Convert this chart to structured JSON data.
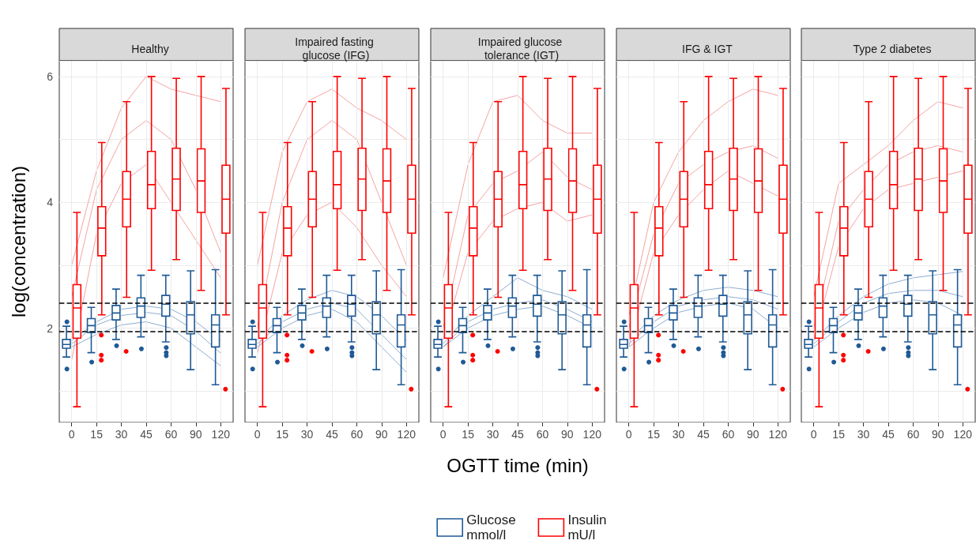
{
  "chart_data": [
    {
      "type": "box",
      "title": "Healthy",
      "ylabel": "log(concentration)",
      "categories": [
        "0",
        "15",
        "30",
        "45",
        "60",
        "90",
        "120"
      ],
      "ylim": [
        0.5,
        6.25
      ],
      "yticks": [
        2,
        4,
        6
      ],
      "grid": true,
      "ref_lines": [
        {
          "axis": "y",
          "value": 2.4,
          "color": "#000000",
          "line_style": "dashed"
        },
        {
          "axis": "y",
          "value": 1.95,
          "color": "#000000",
          "line_style": "dashed"
        }
      ],
      "series": [
        {
          "type": "line",
          "color": "#f5a3a3",
          "values": [
            2.5,
            4.2,
            5.0,
            5.3,
            5.0,
            4.2,
            3.2
          ]
        },
        {
          "type": "line",
          "color": "#f5a3a3",
          "values": [
            1.5,
            3.5,
            4.3,
            4.6,
            4.0,
            3.4,
            2.8
          ]
        },
        {
          "type": "line",
          "color": "#f5a3a3",
          "values": [
            3.0,
            4.5,
            5.5,
            6.0,
            5.8,
            5.7,
            5.6
          ]
        },
        {
          "type": "line",
          "color": "#8fadd0",
          "values": [
            1.75,
            2.05,
            2.2,
            2.25,
            2.2,
            1.95,
            1.6
          ]
        },
        {
          "type": "line",
          "color": "#8fadd0",
          "values": [
            1.7,
            1.9,
            2.05,
            2.1,
            2.0,
            1.7,
            1.4
          ]
        },
        {
          "type": "line",
          "color": "#8fadd0",
          "values": [
            1.8,
            2.1,
            2.3,
            2.35,
            2.3,
            2.1,
            1.8
          ]
        },
        {
          "type": "box",
          "color": "#1f5a96",
          "boxes": [
            {
              "low": 1.54,
              "q1": 1.68,
              "median": 1.74,
              "q3": 1.82,
              "high": 2.03,
              "outliers": [
                2.1,
                1.35
              ]
            },
            {
              "low": 1.61,
              "q1": 1.93,
              "median": 2.04,
              "q3": 2.15,
              "high": 2.33,
              "outliers": [
                1.46
              ]
            },
            {
              "low": 1.82,
              "q1": 2.13,
              "median": 2.24,
              "q3": 2.36,
              "high": 2.62,
              "outliers": [
                1.72
              ]
            },
            {
              "low": 1.86,
              "q1": 2.17,
              "median": 2.35,
              "q3": 2.48,
              "high": 2.84,
              "outliers": [
                1.67
              ]
            },
            {
              "low": 1.78,
              "q1": 2.19,
              "median": 2.38,
              "q3": 2.52,
              "high": 2.84,
              "outliers": [
                1.69,
                1.61,
                1.56
              ]
            },
            {
              "low": 1.34,
              "q1": 1.91,
              "median": 2.21,
              "q3": 2.42,
              "high": 2.91
            },
            {
              "low": 1.1,
              "q1": 1.7,
              "median": 2.05,
              "q3": 2.21,
              "high": 2.93
            }
          ]
        },
        {
          "type": "box",
          "color": "#ff0000",
          "boxes": [
            {
              "low": 0.75,
              "q1": 1.84,
              "median": 2.32,
              "q3": 2.69,
              "high": 3.84
            },
            {
              "low": 2.21,
              "q1": 3.15,
              "median": 3.59,
              "q3": 3.93,
              "high": 4.95,
              "outliers": [
                1.89,
                1.57,
                1.49
              ]
            },
            {
              "low": 2.49,
              "q1": 3.61,
              "median": 4.05,
              "q3": 4.49,
              "high": 5.6,
              "outliers": [
                1.63
              ]
            },
            {
              "low": 2.92,
              "q1": 3.9,
              "median": 4.28,
              "q3": 4.81,
              "high": 6.0
            },
            {
              "low": 3.09,
              "q1": 3.87,
              "median": 4.37,
              "q3": 4.86,
              "high": 5.97
            },
            {
              "low": 2.6,
              "q1": 3.84,
              "median": 4.34,
              "q3": 4.85,
              "high": 6.0
            },
            {
              "low": 2.21,
              "q1": 3.51,
              "median": 4.05,
              "q3": 4.59,
              "high": 5.81,
              "outliers": [
                1.03
              ]
            }
          ]
        }
      ]
    },
    {
      "type": "box",
      "title": "Impaired fasting glucose (IFG)",
      "categories": [
        "0",
        "15",
        "30",
        "45",
        "60",
        "90",
        "120"
      ],
      "ylim": [
        0.5,
        6.25
      ],
      "yticks": [
        2,
        4,
        6
      ],
      "grid": true,
      "tick_labels": "x",
      "ref_lines": [
        {
          "axis": "y",
          "value": 2.4,
          "color": "#000000",
          "line_style": "dashed"
        },
        {
          "axis": "y",
          "value": 1.95,
          "color": "#000000",
          "line_style": "dashed"
        }
      ],
      "series": [
        {
          "type": "line",
          "color": "#f5a3a3",
          "values": [
            2.0,
            4.0,
            5.0,
            5.3,
            5.0,
            4.0,
            3.0
          ]
        },
        {
          "type": "line",
          "color": "#f5a3a3",
          "values": [
            3.0,
            4.8,
            5.6,
            5.8,
            5.5,
            5.3,
            5.0
          ]
        },
        {
          "type": "line",
          "color": "#f5a3a3",
          "values": [
            1.6,
            3.2,
            3.8,
            4.0,
            3.6,
            3.0,
            2.5
          ]
        },
        {
          "type": "line",
          "color": "#8fadd0",
          "values": [
            1.8,
            2.2,
            2.45,
            2.6,
            2.5,
            2.2,
            1.8
          ]
        },
        {
          "type": "line",
          "color": "#8fadd0",
          "values": [
            1.75,
            2.1,
            2.3,
            2.4,
            2.3,
            1.9,
            1.5
          ]
        },
        {
          "type": "line",
          "color": "#8fadd0",
          "values": [
            1.7,
            2.0,
            2.2,
            2.3,
            2.1,
            1.7,
            1.3
          ]
        },
        {
          "type": "box",
          "color": "#1f5a96",
          "boxes": [
            {
              "low": 1.54,
              "q1": 1.68,
              "median": 1.74,
              "q3": 1.82,
              "high": 2.03,
              "outliers": [
                2.1,
                1.35
              ]
            },
            {
              "low": 1.61,
              "q1": 1.93,
              "median": 2.04,
              "q3": 2.15,
              "high": 2.33,
              "outliers": [
                1.46
              ]
            },
            {
              "low": 1.82,
              "q1": 2.13,
              "median": 2.24,
              "q3": 2.36,
              "high": 2.62,
              "outliers": [
                1.72
              ]
            },
            {
              "low": 1.86,
              "q1": 2.17,
              "median": 2.35,
              "q3": 2.48,
              "high": 2.84,
              "outliers": [
                1.67
              ]
            },
            {
              "low": 1.78,
              "q1": 2.19,
              "median": 2.38,
              "q3": 2.52,
              "high": 2.84,
              "outliers": [
                1.69,
                1.61,
                1.56
              ]
            },
            {
              "low": 1.34,
              "q1": 1.91,
              "median": 2.21,
              "q3": 2.42,
              "high": 2.91
            },
            {
              "low": 1.1,
              "q1": 1.7,
              "median": 2.05,
              "q3": 2.21,
              "high": 2.93
            }
          ]
        },
        {
          "type": "box",
          "color": "#ff0000",
          "boxes": [
            {
              "low": 0.75,
              "q1": 1.84,
              "median": 2.32,
              "q3": 2.69,
              "high": 3.84
            },
            {
              "low": 2.21,
              "q1": 3.15,
              "median": 3.59,
              "q3": 3.93,
              "high": 4.95,
              "outliers": [
                1.89,
                1.57,
                1.49
              ]
            },
            {
              "low": 2.49,
              "q1": 3.61,
              "median": 4.05,
              "q3": 4.49,
              "high": 5.6,
              "outliers": [
                1.63
              ]
            },
            {
              "low": 2.92,
              "q1": 3.9,
              "median": 4.28,
              "q3": 4.81,
              "high": 6.0
            },
            {
              "low": 3.09,
              "q1": 3.87,
              "median": 4.37,
              "q3": 4.86,
              "high": 5.97
            },
            {
              "low": 2.6,
              "q1": 3.84,
              "median": 4.34,
              "q3": 4.85,
              "high": 6.0
            },
            {
              "low": 2.21,
              "q1": 3.51,
              "median": 4.05,
              "q3": 4.59,
              "high": 5.81,
              "outliers": [
                1.03
              ]
            }
          ]
        }
      ]
    },
    {
      "type": "box",
      "title": "Impaired glucose tolerance (IGT)",
      "xlabel": "OGTT time (min)",
      "legend": "bottom",
      "categories": [
        "0",
        "15",
        "30",
        "45",
        "60",
        "90",
        "120"
      ],
      "ylim": [
        0.5,
        6.25
      ],
      "yticks": [
        2,
        4,
        6
      ],
      "grid": true,
      "tick_labels": "x",
      "ref_lines": [
        {
          "axis": "y",
          "value": 2.4,
          "color": "#000000",
          "line_style": "dashed"
        },
        {
          "axis": "y",
          "value": 1.95,
          "color": "#000000",
          "line_style": "dashed"
        }
      ],
      "series": [
        {
          "type": "line",
          "color": "#f5a3a3",
          "values": [
            2.8,
            4.6,
            5.6,
            5.7,
            5.3,
            5.1,
            5.1
          ]
        },
        {
          "type": "line",
          "color": "#f5a3a3",
          "values": [
            2.0,
            3.8,
            4.3,
            4.5,
            4.8,
            4.4,
            4.2
          ]
        },
        {
          "type": "line",
          "color": "#f5a3a3",
          "values": [
            1.8,
            3.2,
            3.7,
            3.9,
            4.0,
            3.7,
            3.8
          ]
        },
        {
          "type": "line",
          "color": "#8fadd0",
          "values": [
            1.75,
            2.2,
            2.5,
            2.8,
            2.6,
            2.5,
            2.3
          ]
        },
        {
          "type": "line",
          "color": "#8fadd0",
          "values": [
            1.7,
            2.1,
            2.3,
            2.4,
            2.45,
            2.3,
            2.1
          ]
        },
        {
          "type": "line",
          "color": "#8fadd0",
          "values": [
            1.7,
            2.0,
            2.2,
            2.3,
            2.35,
            2.2,
            2.0
          ]
        },
        {
          "type": "box",
          "name": "Glucose\nmmol/l",
          "color": "#1f5a96",
          "boxes": [
            {
              "low": 1.54,
              "q1": 1.68,
              "median": 1.74,
              "q3": 1.82,
              "high": 2.03,
              "outliers": [
                2.1,
                1.35
              ]
            },
            {
              "low": 1.61,
              "q1": 1.93,
              "median": 2.04,
              "q3": 2.15,
              "high": 2.33,
              "outliers": [
                1.46
              ]
            },
            {
              "low": 1.82,
              "q1": 2.13,
              "median": 2.24,
              "q3": 2.36,
              "high": 2.62,
              "outliers": [
                1.72
              ]
            },
            {
              "low": 1.86,
              "q1": 2.17,
              "median": 2.35,
              "q3": 2.48,
              "high": 2.84,
              "outliers": [
                1.67
              ]
            },
            {
              "low": 1.78,
              "q1": 2.19,
              "median": 2.38,
              "q3": 2.52,
              "high": 2.84,
              "outliers": [
                1.69,
                1.61,
                1.56
              ]
            },
            {
              "low": 1.34,
              "q1": 1.91,
              "median": 2.21,
              "q3": 2.42,
              "high": 2.91
            },
            {
              "low": 1.1,
              "q1": 1.7,
              "median": 2.05,
              "q3": 2.21,
              "high": 2.93
            }
          ]
        },
        {
          "type": "box",
          "name": "Insulin\nmU/l",
          "color": "#ff0000",
          "boxes": [
            {
              "low": 0.75,
              "q1": 1.84,
              "median": 2.32,
              "q3": 2.69,
              "high": 3.84
            },
            {
              "low": 2.21,
              "q1": 3.15,
              "median": 3.59,
              "q3": 3.93,
              "high": 4.95,
              "outliers": [
                1.89,
                1.57,
                1.49
              ]
            },
            {
              "low": 2.49,
              "q1": 3.61,
              "median": 4.05,
              "q3": 4.49,
              "high": 5.6,
              "outliers": [
                1.63
              ]
            },
            {
              "low": 2.92,
              "q1": 3.9,
              "median": 4.28,
              "q3": 4.81,
              "high": 6.0
            },
            {
              "low": 3.09,
              "q1": 3.87,
              "median": 4.37,
              "q3": 4.86,
              "high": 5.97
            },
            {
              "low": 2.6,
              "q1": 3.84,
              "median": 4.34,
              "q3": 4.85,
              "high": 6.0
            },
            {
              "low": 2.21,
              "q1": 3.51,
              "median": 4.05,
              "q3": 4.59,
              "high": 5.81,
              "outliers": [
                1.03
              ]
            }
          ]
        }
      ]
    },
    {
      "type": "box",
      "title": "IFG & IGT",
      "categories": [
        "0",
        "15",
        "30",
        "45",
        "60",
        "90",
        "120"
      ],
      "ylim": [
        0.5,
        6.25
      ],
      "yticks": [
        2,
        4,
        6
      ],
      "grid": true,
      "tick_labels": "x",
      "ref_lines": [
        {
          "axis": "y",
          "value": 2.4,
          "color": "#000000",
          "line_style": "dashed"
        },
        {
          "axis": "y",
          "value": 1.95,
          "color": "#000000",
          "line_style": "dashed"
        }
      ],
      "series": [
        {
          "type": "line",
          "color": "#f5a3a3",
          "values": [
            2.2,
            4.0,
            4.8,
            5.3,
            5.6,
            5.8,
            5.7
          ]
        },
        {
          "type": "line",
          "color": "#f5a3a3",
          "values": [
            2.0,
            3.5,
            4.3,
            4.6,
            4.8,
            4.9,
            4.7
          ]
        },
        {
          "type": "line",
          "color": "#f5a3a3",
          "values": [
            1.7,
            3.2,
            3.8,
            4.2,
            4.5,
            4.3,
            4.1
          ]
        },
        {
          "type": "line",
          "color": "#8fadd0",
          "values": [
            1.8,
            2.2,
            2.45,
            2.6,
            2.65,
            2.6,
            2.5
          ]
        },
        {
          "type": "line",
          "color": "#8fadd0",
          "values": [
            1.75,
            2.1,
            2.35,
            2.45,
            2.5,
            2.45,
            2.3
          ]
        },
        {
          "type": "line",
          "color": "#8fadd0",
          "values": [
            1.7,
            2.0,
            2.25,
            2.35,
            2.4,
            2.3,
            2.0
          ]
        },
        {
          "type": "box",
          "color": "#1f5a96",
          "boxes": [
            {
              "low": 1.54,
              "q1": 1.68,
              "median": 1.74,
              "q3": 1.82,
              "high": 2.03,
              "outliers": [
                2.1,
                1.35
              ]
            },
            {
              "low": 1.61,
              "q1": 1.93,
              "median": 2.04,
              "q3": 2.15,
              "high": 2.33,
              "outliers": [
                1.46
              ]
            },
            {
              "low": 1.82,
              "q1": 2.13,
              "median": 2.24,
              "q3": 2.36,
              "high": 2.62,
              "outliers": [
                1.72
              ]
            },
            {
              "low": 1.86,
              "q1": 2.17,
              "median": 2.35,
              "q3": 2.48,
              "high": 2.84,
              "outliers": [
                1.67
              ]
            },
            {
              "low": 1.78,
              "q1": 2.19,
              "median": 2.38,
              "q3": 2.52,
              "high": 2.84,
              "outliers": [
                1.69,
                1.61,
                1.56
              ]
            },
            {
              "low": 1.34,
              "q1": 1.91,
              "median": 2.21,
              "q3": 2.42,
              "high": 2.91
            },
            {
              "low": 1.1,
              "q1": 1.7,
              "median": 2.05,
              "q3": 2.21,
              "high": 2.93
            }
          ]
        },
        {
          "type": "box",
          "color": "#ff0000",
          "boxes": [
            {
              "low": 0.75,
              "q1": 1.84,
              "median": 2.32,
              "q3": 2.69,
              "high": 3.84
            },
            {
              "low": 2.21,
              "q1": 3.15,
              "median": 3.59,
              "q3": 3.93,
              "high": 4.95,
              "outliers": [
                1.89,
                1.57,
                1.49
              ]
            },
            {
              "low": 2.49,
              "q1": 3.61,
              "median": 4.05,
              "q3": 4.49,
              "high": 5.6,
              "outliers": [
                1.63
              ]
            },
            {
              "low": 2.92,
              "q1": 3.9,
              "median": 4.28,
              "q3": 4.81,
              "high": 6.0
            },
            {
              "low": 3.09,
              "q1": 3.87,
              "median": 4.37,
              "q3": 4.86,
              "high": 5.97
            },
            {
              "low": 2.6,
              "q1": 3.84,
              "median": 4.34,
              "q3": 4.85,
              "high": 6.0
            },
            {
              "low": 2.21,
              "q1": 3.51,
              "median": 4.05,
              "q3": 4.59,
              "high": 5.81,
              "outliers": [
                1.03
              ]
            }
          ]
        }
      ]
    },
    {
      "type": "box",
      "title": "Type 2 diabetes",
      "categories": [
        "0",
        "15",
        "30",
        "45",
        "60",
        "90",
        "120"
      ],
      "ylim": [
        0.5,
        6.25
      ],
      "yticks": [
        2,
        4,
        6
      ],
      "grid": true,
      "tick_labels": "x",
      "ref_lines": [
        {
          "axis": "y",
          "value": 2.4,
          "color": "#000000",
          "line_style": "dashed"
        },
        {
          "axis": "y",
          "value": 1.95,
          "color": "#000000",
          "line_style": "dashed"
        }
      ],
      "series": [
        {
          "type": "line",
          "color": "#f5a3a3",
          "values": [
            2.5,
            4.3,
            4.6,
            4.9,
            5.3,
            5.6,
            5.5
          ]
        },
        {
          "type": "line",
          "color": "#f5a3a3",
          "values": [
            2.0,
            3.7,
            4.2,
            4.6,
            4.8,
            4.9,
            4.8
          ]
        },
        {
          "type": "line",
          "color": "#f5a3a3",
          "values": [
            1.8,
            3.3,
            3.9,
            4.2,
            4.3,
            4.4,
            4.5
          ]
        },
        {
          "type": "line",
          "color": "#8fadd0",
          "values": [
            1.8,
            2.2,
            2.5,
            2.7,
            2.8,
            2.85,
            2.9
          ]
        },
        {
          "type": "line",
          "color": "#8fadd0",
          "values": [
            1.75,
            2.1,
            2.4,
            2.55,
            2.6,
            2.6,
            2.5
          ]
        },
        {
          "type": "line",
          "color": "#8fadd0",
          "values": [
            1.7,
            2.0,
            2.25,
            2.4,
            2.45,
            2.4,
            2.2
          ]
        },
        {
          "type": "box",
          "color": "#1f5a96",
          "boxes": [
            {
              "low": 1.54,
              "q1": 1.68,
              "median": 1.74,
              "q3": 1.82,
              "high": 2.03,
              "outliers": [
                2.1,
                1.35
              ]
            },
            {
              "low": 1.61,
              "q1": 1.93,
              "median": 2.04,
              "q3": 2.15,
              "high": 2.33,
              "outliers": [
                1.46
              ]
            },
            {
              "low": 1.82,
              "q1": 2.13,
              "median": 2.24,
              "q3": 2.36,
              "high": 2.62,
              "outliers": [
                1.72
              ]
            },
            {
              "low": 1.86,
              "q1": 2.17,
              "median": 2.35,
              "q3": 2.48,
              "high": 2.84,
              "outliers": [
                1.67
              ]
            },
            {
              "low": 1.78,
              "q1": 2.19,
              "median": 2.38,
              "q3": 2.52,
              "high": 2.84,
              "outliers": [
                1.69,
                1.61,
                1.56
              ]
            },
            {
              "low": 1.34,
              "q1": 1.91,
              "median": 2.21,
              "q3": 2.42,
              "high": 2.91
            },
            {
              "low": 1.1,
              "q1": 1.7,
              "median": 2.05,
              "q3": 2.21,
              "high": 2.93
            }
          ]
        },
        {
          "type": "box",
          "color": "#ff0000",
          "boxes": [
            {
              "low": 0.75,
              "q1": 1.84,
              "median": 2.32,
              "q3": 2.69,
              "high": 3.84
            },
            {
              "low": 2.21,
              "q1": 3.15,
              "median": 3.59,
              "q3": 3.93,
              "high": 4.95,
              "outliers": [
                1.89,
                1.57,
                1.49
              ]
            },
            {
              "low": 2.49,
              "q1": 3.61,
              "median": 4.05,
              "q3": 4.49,
              "high": 5.6,
              "outliers": [
                1.63
              ]
            },
            {
              "low": 2.92,
              "q1": 3.9,
              "median": 4.28,
              "q3": 4.81,
              "high": 6.0
            },
            {
              "low": 3.09,
              "q1": 3.87,
              "median": 4.37,
              "q3": 4.86,
              "high": 5.97
            },
            {
              "low": 2.6,
              "q1": 3.84,
              "median": 4.34,
              "q3": 4.85,
              "high": 6.0
            },
            {
              "low": 2.21,
              "q1": 3.51,
              "median": 4.05,
              "q3": 4.59,
              "high": 5.81,
              "outliers": [
                1.03
              ]
            }
          ]
        }
      ]
    }
  ]
}
